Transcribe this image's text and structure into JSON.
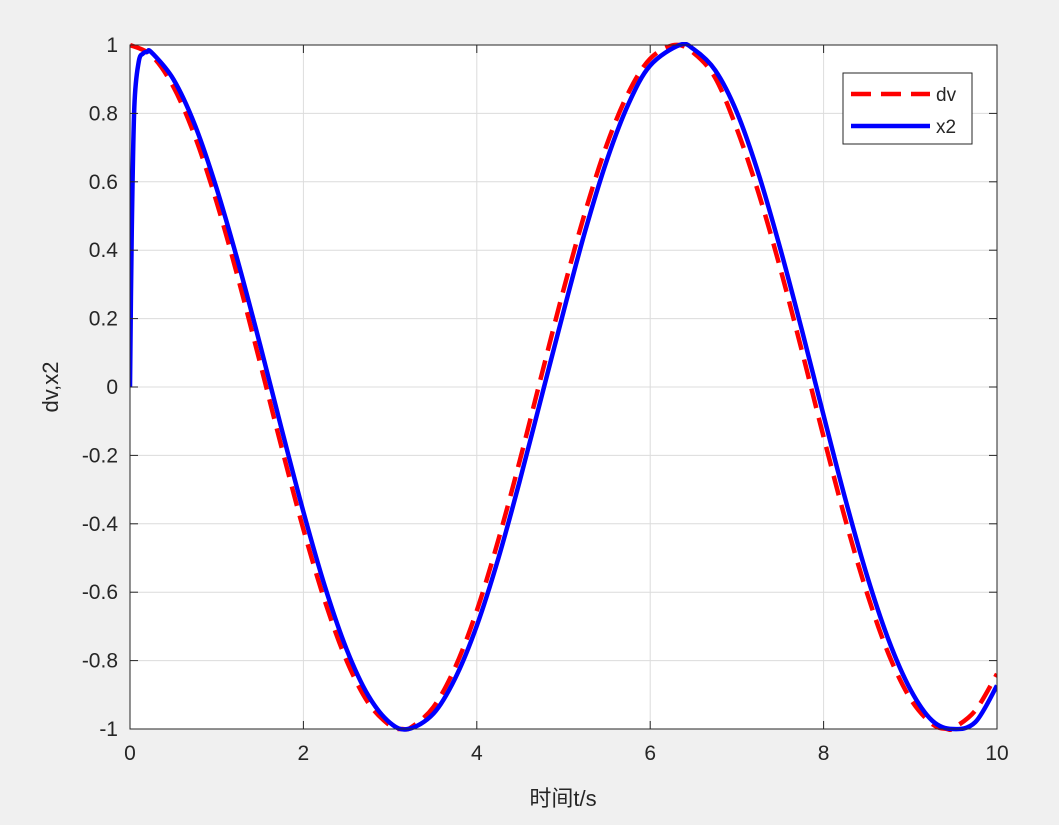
{
  "chart_data": {
    "type": "line",
    "title": "",
    "xlabel": "时间t/s",
    "ylabel": "dv,x2",
    "xlim": [
      0,
      10
    ],
    "ylim": [
      -1,
      1
    ],
    "xticks": [
      0,
      2,
      4,
      6,
      8,
      10
    ],
    "yticks": [
      -1,
      -0.8,
      -0.6,
      -0.4,
      -0.2,
      0,
      0.2,
      0.4,
      0.6,
      0.8,
      1
    ],
    "grid": true,
    "legend_position": "top-right",
    "series": [
      {
        "name": "dv",
        "color": "#ff0000",
        "style": "dashed",
        "x": [
          0,
          0.25,
          0.5,
          0.75,
          1,
          1.25,
          1.5,
          1.75,
          2,
          2.25,
          2.5,
          2.75,
          3,
          3.1416,
          3.25,
          3.5,
          3.75,
          4,
          4.25,
          4.5,
          4.75,
          5,
          5.25,
          5.5,
          5.75,
          6,
          6.2832,
          6.5,
          6.75,
          7,
          7.25,
          7.5,
          7.75,
          8,
          8.25,
          8.5,
          8.75,
          9,
          9.25,
          9.4248,
          9.5,
          9.75,
          10
        ],
        "y": [
          1,
          0.969,
          0.878,
          0.732,
          0.54,
          0.315,
          0.071,
          -0.178,
          -0.416,
          -0.628,
          -0.801,
          -0.924,
          -0.99,
          -1,
          -0.994,
          -0.936,
          -0.82,
          -0.654,
          -0.446,
          -0.211,
          0.038,
          0.284,
          0.512,
          0.709,
          0.861,
          0.96,
          1,
          0.977,
          0.904,
          0.754,
          0.567,
          0.347,
          0.105,
          -0.146,
          -0.387,
          -0.602,
          -0.781,
          -0.911,
          -0.985,
          -1,
          -0.997,
          -0.946,
          -0.839
        ]
      },
      {
        "name": "x2",
        "color": "#0000ff",
        "style": "solid",
        "x": [
          0,
          0.02,
          0.05,
          0.1,
          0.15,
          0.2,
          0.25,
          0.5,
          0.75,
          1,
          1.25,
          1.5,
          1.75,
          2,
          2.25,
          2.5,
          2.75,
          3,
          3.21,
          3.5,
          3.75,
          4,
          4.25,
          4.5,
          4.75,
          5,
          5.25,
          5.5,
          5.75,
          6,
          6.34,
          6.5,
          6.75,
          7,
          7.25,
          7.5,
          7.75,
          8,
          8.25,
          8.5,
          8.75,
          9,
          9.25,
          9.49,
          9.75,
          10
        ],
        "y": [
          0,
          0.45,
          0.82,
          0.95,
          0.975,
          0.98,
          0.978,
          0.9,
          0.765,
          0.58,
          0.362,
          0.124,
          -0.124,
          -0.365,
          -0.585,
          -0.768,
          -0.903,
          -0.982,
          -1,
          -0.955,
          -0.852,
          -0.698,
          -0.5,
          -0.27,
          -0.025,
          0.22,
          0.456,
          0.663,
          0.828,
          0.94,
          1,
          0.988,
          0.926,
          0.803,
          0.623,
          0.405,
          0.166,
          -0.083,
          -0.327,
          -0.551,
          -0.74,
          -0.884,
          -0.975,
          -1,
          -0.98,
          -0.873
        ]
      }
    ]
  }
}
